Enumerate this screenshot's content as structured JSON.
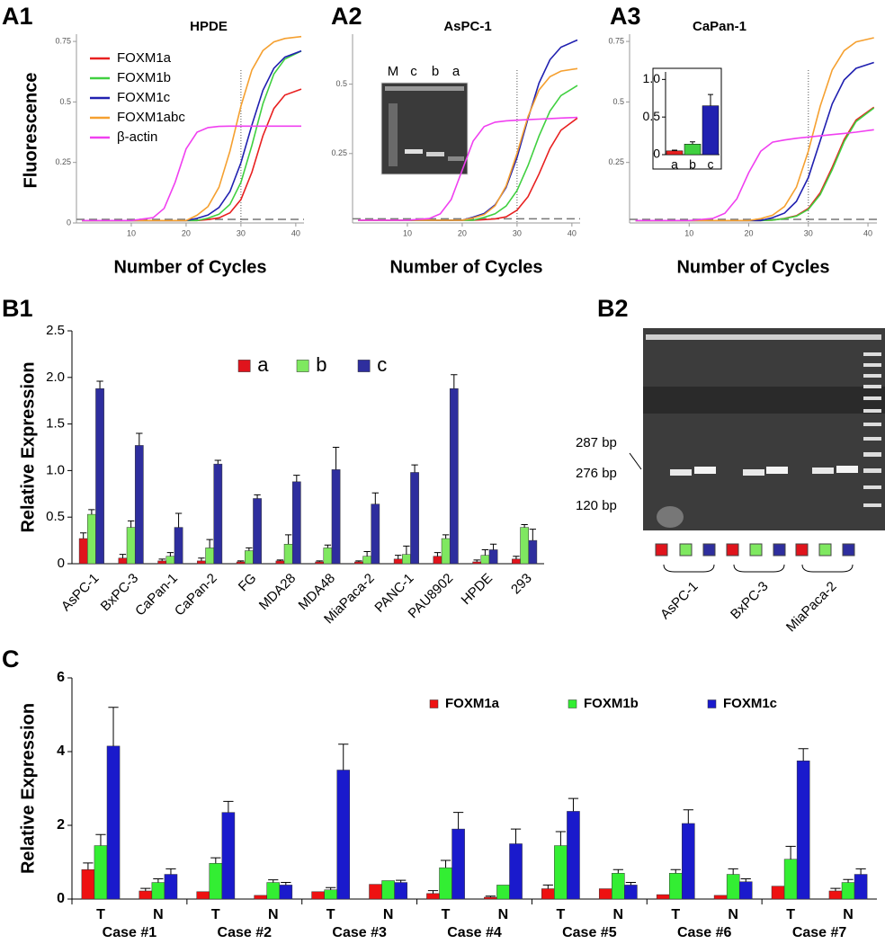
{
  "chart_data": [
    {
      "type": "line",
      "title": "HPDE",
      "xlabel": "Number of Cycles",
      "ylabel": "Fluorescence",
      "legend": "top-left",
      "x": [
        1,
        5,
        10,
        14,
        16,
        18,
        20,
        22,
        24,
        26,
        28,
        30,
        32,
        34,
        36,
        38,
        41
      ],
      "xlim": [
        0,
        41.5
      ],
      "ylim": [
        0,
        0.78
      ],
      "xticks": [
        10,
        20,
        30,
        40
      ],
      "yticks": [
        0,
        0.25,
        0.5,
        0.75
      ],
      "threshold": 0.015,
      "vline": 30,
      "series": [
        {
          "name": "FOXM1a",
          "color": "#e82020",
          "values": [
            0.01,
            0.01,
            0.01,
            0.01,
            0.01,
            0.01,
            0.01,
            0.01,
            0.014,
            0.021,
            0.042,
            0.097,
            0.21,
            0.36,
            0.473,
            0.528,
            0.553
          ]
        },
        {
          "name": "FOXM1b",
          "color": "#40d040",
          "values": [
            0.01,
            0.01,
            0.01,
            0.01,
            0.01,
            0.01,
            0.01,
            0.01,
            0.02,
            0.036,
            0.077,
            0.168,
            0.321,
            0.492,
            0.615,
            0.677,
            0.71
          ]
        },
        {
          "name": "FOXM1c",
          "color": "#2020b0",
          "values": [
            0.01,
            0.01,
            0.01,
            0.01,
            0.01,
            0.01,
            0.01,
            0.019,
            0.033,
            0.064,
            0.13,
            0.249,
            0.405,
            0.548,
            0.639,
            0.685,
            0.711
          ]
        },
        {
          "name": "FOXM1abc",
          "color": "#f5a030",
          "values": [
            0.01,
            0.01,
            0.01,
            0.01,
            0.01,
            0.01,
            0.01,
            0.032,
            0.068,
            0.148,
            0.297,
            0.483,
            0.632,
            0.712,
            0.748,
            0.762,
            0.77
          ]
        },
        {
          "name": "β-actin",
          "color": "#f040f0",
          "values": [
            0.01,
            0.01,
            0.01,
            0.022,
            0.06,
            0.168,
            0.306,
            0.375,
            0.394,
            0.399,
            0.4,
            0.4,
            0.4,
            0.4,
            0.4,
            0.4,
            0.4
          ]
        }
      ]
    },
    {
      "type": "line",
      "title": "AsPC-1",
      "xlabel": "Number of Cycles",
      "x": [
        1,
        5,
        10,
        14,
        16,
        18,
        20,
        22,
        24,
        26,
        28,
        30,
        32,
        34,
        36,
        38,
        41
      ],
      "xlim": [
        0,
        41.5
      ],
      "ylim": [
        0,
        0.68
      ],
      "xticks": [
        10,
        20,
        30,
        40
      ],
      "yticks": [
        0.25,
        0.5
      ],
      "threshold": 0.015,
      "vline": 30,
      "series": [
        {
          "color": "#e82020",
          "values": [
            0.01,
            0.01,
            0.01,
            0.01,
            0.01,
            0.01,
            0.01,
            0.01,
            0.012,
            0.015,
            0.022,
            0.046,
            0.095,
            0.176,
            0.268,
            0.334,
            0.378
          ]
        },
        {
          "color": "#40d040",
          "values": [
            0.01,
            0.01,
            0.01,
            0.01,
            0.01,
            0.01,
            0.01,
            0.01,
            0.02,
            0.033,
            0.061,
            0.117,
            0.207,
            0.313,
            0.403,
            0.459,
            0.495
          ]
        },
        {
          "color": "#2020b0",
          "values": [
            0.01,
            0.01,
            0.01,
            0.01,
            0.01,
            0.01,
            0.01,
            0.021,
            0.034,
            0.065,
            0.128,
            0.236,
            0.376,
            0.504,
            0.588,
            0.633,
            0.659
          ]
        },
        {
          "color": "#f5a030",
          "values": [
            0.01,
            0.01,
            0.01,
            0.01,
            0.01,
            0.01,
            0.01,
            0.018,
            0.03,
            0.062,
            0.133,
            0.251,
            0.383,
            0.479,
            0.527,
            0.547,
            0.556
          ]
        },
        {
          "color": "#f040f0",
          "values": [
            0.01,
            0.01,
            0.01,
            0.016,
            0.033,
            0.085,
            0.19,
            0.295,
            0.347,
            0.363,
            0.368,
            0.37,
            0.372,
            0.374,
            0.376,
            0.378,
            0.38
          ]
        }
      ]
    },
    {
      "type": "line",
      "title": "CaPan-1",
      "xlabel": "Number of Cycles",
      "x": [
        1,
        5,
        10,
        14,
        16,
        18,
        20,
        22,
        24,
        26,
        28,
        30,
        32,
        34,
        36,
        38,
        41
      ],
      "xlim": [
        0,
        41.5
      ],
      "ylim": [
        0,
        0.78
      ],
      "xticks": [
        10,
        20,
        30,
        40
      ],
      "yticks": [
        0.25,
        0.5,
        0.75
      ],
      "threshold": 0.015,
      "vline": 30,
      "series": [
        {
          "color": "#e82020",
          "values": [
            0.01,
            0.01,
            0.01,
            0.01,
            0.01,
            0.01,
            0.01,
            0.01,
            0.012,
            0.019,
            0.03,
            0.06,
            0.125,
            0.23,
            0.345,
            0.425,
            0.478
          ]
        },
        {
          "color": "#40d040",
          "values": [
            0.01,
            0.01,
            0.01,
            0.01,
            0.01,
            0.01,
            0.01,
            0.01,
            0.012,
            0.018,
            0.028,
            0.056,
            0.117,
            0.22,
            0.336,
            0.419,
            0.475
          ]
        },
        {
          "color": "#2020b0",
          "values": [
            0.01,
            0.01,
            0.01,
            0.01,
            0.01,
            0.01,
            0.01,
            0.01,
            0.022,
            0.041,
            0.089,
            0.188,
            0.34,
            0.492,
            0.591,
            0.639,
            0.663
          ]
        },
        {
          "color": "#f5a030",
          "values": [
            0.01,
            0.01,
            0.01,
            0.01,
            0.01,
            0.01,
            0.01,
            0.018,
            0.032,
            0.068,
            0.148,
            0.297,
            0.483,
            0.632,
            0.712,
            0.748,
            0.765
          ]
        },
        {
          "color": "#f040f0",
          "values": [
            0.01,
            0.01,
            0.01,
            0.019,
            0.04,
            0.1,
            0.208,
            0.296,
            0.334,
            0.343,
            0.35,
            0.355,
            0.36,
            0.365,
            0.37,
            0.375,
            0.385
          ]
        }
      ]
    },
    {
      "type": "bar",
      "categories": [
        "a",
        "b",
        "c"
      ],
      "values": [
        0.05,
        0.14,
        0.65
      ],
      "errors": [
        0.01,
        0.03,
        0.15
      ],
      "colors": [
        "#e82020",
        "#40d040",
        "#2020b0"
      ],
      "ylim": [
        0,
        1.1
      ],
      "yticks": [
        0,
        0.5,
        {
          "value": 1,
          "label": "1.0"
        }
      ]
    },
    {
      "type": "bar",
      "ylabel": "Relative Expression",
      "legend": "top",
      "categories": [
        "AsPC-1",
        "BxPC-3",
        "CaPan-1",
        "CaPan-2",
        "FG",
        "MDA28",
        "MDA48",
        "MiaPaca-2",
        "PANC-1",
        "PAU8902",
        "HPDE",
        "293"
      ],
      "ylim": [
        0,
        2.5
      ],
      "yticks": [
        0,
        0.5,
        {
          "value": 1,
          "label": "1.0"
        },
        1.5,
        {
          "value": 2,
          "label": "2.0"
        },
        2.5
      ],
      "series": [
        {
          "name": "a",
          "color": "#e0141c",
          "values": [
            0.27,
            0.06,
            0.03,
            0.03,
            0.02,
            0.03,
            0.02,
            0.02,
            0.05,
            0.08,
            0.02,
            0.05
          ],
          "errors": [
            0.06,
            0.04,
            0.02,
            0.03,
            0.01,
            0.01,
            0.01,
            0.01,
            0.04,
            0.04,
            0.02,
            0.03
          ]
        },
        {
          "name": "b",
          "color": "#7fe860",
          "values": [
            0.53,
            0.39,
            0.08,
            0.17,
            0.14,
            0.21,
            0.17,
            0.08,
            0.1,
            0.27,
            0.09,
            0.39
          ],
          "errors": [
            0.05,
            0.07,
            0.04,
            0.09,
            0.03,
            0.1,
            0.03,
            0.05,
            0.09,
            0.04,
            0.06,
            0.03
          ]
        },
        {
          "name": "c",
          "color": "#2e2e9e",
          "values": [
            1.88,
            1.27,
            0.39,
            1.07,
            0.7,
            0.88,
            1.01,
            0.64,
            0.98,
            1.88,
            0.15,
            0.25
          ],
          "errors": [
            0.08,
            0.13,
            0.15,
            0.04,
            0.04,
            0.07,
            0.24,
            0.12,
            0.08,
            0.15,
            0.06,
            0.12
          ]
        }
      ]
    },
    {
      "type": "bar",
      "ylabel": "Relative Expression",
      "legend": "top-right",
      "categories": [
        "T",
        "N",
        "T",
        "N",
        "T",
        "N",
        "T",
        "N",
        "T",
        "N",
        "T",
        "N",
        "T",
        "N"
      ],
      "groups": [
        "Case #1",
        "Case #2",
        "Case #3",
        "Case #4",
        "Case #5",
        "Case #6",
        "Case #7"
      ],
      "ylim": [
        0,
        6
      ],
      "yticks": [
        0,
        2,
        4,
        6
      ],
      "series": [
        {
          "name": "FOXM1a",
          "color": "#ee1111",
          "values": [
            0.8,
            0.22,
            0.2,
            0.1,
            0.2,
            0.4,
            0.15,
            0.05,
            0.28,
            0.28,
            0.12,
            0.1,
            0.35,
            0.22
          ],
          "errors": [
            0.18,
            0.07,
            null,
            null,
            null,
            null,
            0.08,
            0.03,
            0.1,
            null,
            null,
            null,
            null,
            0.07
          ]
        },
        {
          "name": "FOXM1b",
          "color": "#33ee33",
          "values": [
            1.45,
            0.45,
            0.97,
            0.45,
            0.25,
            0.5,
            0.85,
            0.38,
            1.45,
            0.7,
            0.7,
            0.67,
            1.08,
            0.45
          ],
          "errors": [
            0.3,
            0.1,
            0.15,
            0.07,
            0.06,
            null,
            0.2,
            null,
            0.38,
            0.1,
            0.1,
            0.15,
            0.35,
            0.08
          ]
        },
        {
          "name": "FOXM1c",
          "color": "#1a1acc",
          "values": [
            4.15,
            0.67,
            2.35,
            0.38,
            3.5,
            0.45,
            1.9,
            1.5,
            2.38,
            0.38,
            2.05,
            0.47,
            3.75,
            0.67
          ],
          "errors": [
            1.05,
            0.15,
            0.3,
            0.07,
            0.7,
            0.06,
            0.45,
            0.4,
            0.35,
            0.07,
            0.37,
            0.08,
            0.33,
            0.15
          ]
        }
      ]
    }
  ],
  "panel_labels": [
    "A1",
    "A2",
    "A3",
    "B1",
    "B2",
    "C"
  ],
  "gel_a2": {
    "lanes": [
      "M",
      "c",
      "b",
      "a"
    ]
  },
  "gel_b2": {
    "markers": [
      "287 bp",
      "276 bp",
      "120 bp"
    ],
    "samples": [
      "AsPC-1",
      "BxPC-3",
      "MiaPaca-2"
    ]
  }
}
